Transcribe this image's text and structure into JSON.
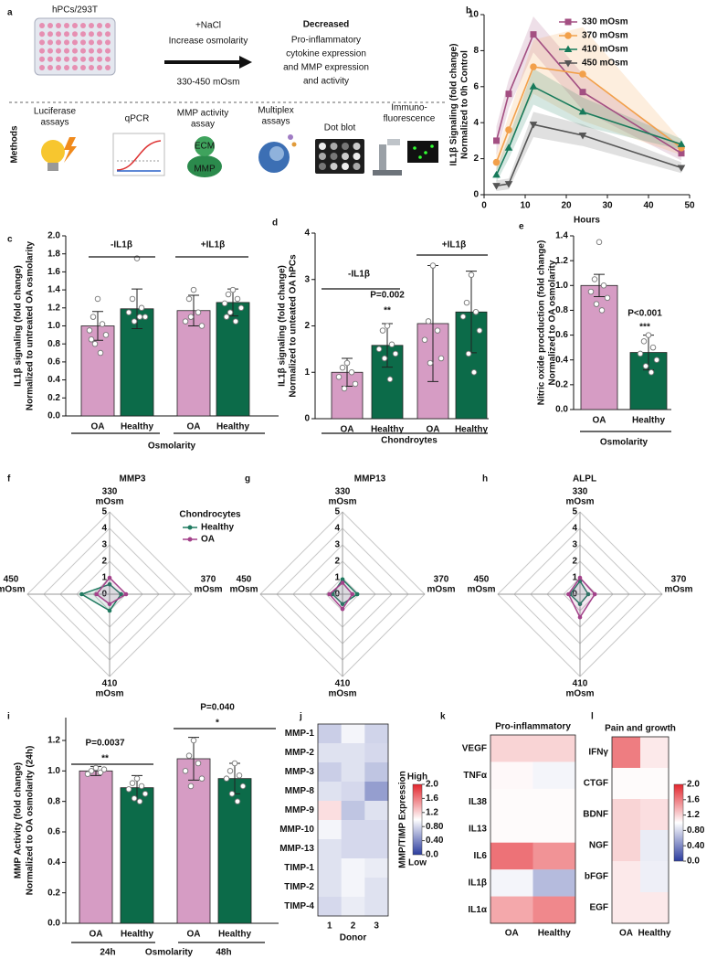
{
  "schematic": {
    "panel": "a",
    "plate_label": "hPCs/293T",
    "treatment": [
      "+NaCl",
      "Increase osmolarity",
      "330-450 mOsm"
    ],
    "outcome_title": "Decreased",
    "outcome": [
      "Pro-inflammatory",
      "cytokine expression",
      "and MMP expression",
      "and activity"
    ],
    "methods_title": "Methods",
    "methods": [
      [
        "Luciferase",
        "assays"
      ],
      [
        "qPCR"
      ],
      [
        "MMP activity",
        "assay"
      ],
      [
        "Multiplex",
        "assays"
      ],
      [
        "Dot blot"
      ],
      [
        "Immuno-",
        "fluorescence"
      ]
    ],
    "icon_text": [
      "ECM",
      "MMP"
    ]
  },
  "chart_data": [
    {
      "panel": "b",
      "type": "line",
      "ylabel": [
        "IL1β Signaling (fold change)",
        "Normalized to 0h Control"
      ],
      "xlabel": "Hours",
      "x": [
        3,
        6,
        12,
        24,
        48
      ],
      "xlim": [
        0,
        50
      ],
      "xticks": [
        0,
        10,
        20,
        30,
        40,
        50
      ],
      "ylim": [
        0,
        10
      ],
      "yticks": [
        0,
        2,
        4,
        6,
        8,
        10
      ],
      "legend": "upper right",
      "series": [
        {
          "name": "330 mOsm",
          "color": "#a34f82",
          "marker": "square",
          "values": [
            3.0,
            5.6,
            8.9,
            5.7,
            2.3
          ],
          "errors": [
            0.8,
            0.8,
            1.0,
            1.0,
            0.4
          ]
        },
        {
          "name": "370 mOsm",
          "color": "#f2a04a",
          "marker": "circle",
          "values": [
            1.8,
            3.6,
            7.1,
            6.7,
            2.6
          ],
          "errors": [
            0.5,
            0.8,
            1.5,
            2.6,
            0.4
          ]
        },
        {
          "name": "410 mOsm",
          "color": "#177a5a",
          "marker": "triangle",
          "values": [
            1.1,
            2.6,
            6.0,
            4.6,
            2.8
          ],
          "errors": [
            0.4,
            0.6,
            1.0,
            0.8,
            0.3
          ]
        },
        {
          "name": "450 mOsm",
          "color": "#555555",
          "marker": "triangle-down",
          "values": [
            0.5,
            0.6,
            3.9,
            3.3,
            1.5
          ],
          "errors": [
            0.3,
            0.3,
            0.7,
            0.6,
            0.3
          ]
        }
      ]
    },
    {
      "panel": "c",
      "type": "bar",
      "ylabel": [
        "IL1β signaling (fold change)",
        "Normalized to untreated OA osmolarity"
      ],
      "xlabel": "Osmolarity",
      "groups": [
        "-IL1β",
        "+IL1β"
      ],
      "annotations": [],
      "categories": [
        "OA",
        "Healthy",
        "OA",
        "Healthy"
      ],
      "colors": [
        "#d69cc4",
        "#0c6b49",
        "#d69cc4",
        "#0c6b49"
      ],
      "values": [
        1.0,
        1.19,
        1.17,
        1.26
      ],
      "errors": [
        0.16,
        0.22,
        0.17,
        0.15
      ],
      "points": [
        [
          1.3,
          1.1,
          1.02,
          0.95,
          0.9,
          0.8,
          0.7,
          0.85
        ],
        [
          1.75,
          1.3,
          1.2,
          1.15,
          1.1,
          1.05,
          1.1
        ],
        [
          1.4,
          1.3,
          1.15,
          1.05,
          1.0,
          1.1
        ],
        [
          1.4,
          1.35,
          1.3,
          1.25,
          1.2,
          1.15,
          1.05,
          1.1
        ]
      ],
      "ylim": [
        0,
        2
      ],
      "yticks": [
        {
          "value": 0,
          "label": "0.0"
        },
        0.2,
        0.4,
        0.6,
        0.8,
        {
          "value": 1,
          "label": "1.0"
        },
        1.2,
        1.4,
        1.6,
        1.8,
        {
          "value": 2,
          "label": "2.0"
        }
      ]
    },
    {
      "panel": "d",
      "type": "bar",
      "ylabel": [
        "IL1β signaling (fold change)",
        "Normalized to unteated OA hPCs"
      ],
      "xlabel": "Chondroytes",
      "groups": [
        "-IL1β",
        "+IL1β"
      ],
      "annotations": [
        "P=0.002",
        "**"
      ],
      "categories": [
        "OA",
        "Healthy",
        "OA",
        "Healthy"
      ],
      "colors": [
        "#d69cc4",
        "#0c6b49",
        "#d69cc4",
        "#0c6b49"
      ],
      "values": [
        1.0,
        1.58,
        2.05,
        2.3
      ],
      "errors": [
        0.3,
        0.47,
        1.25,
        0.88
      ],
      "points": [
        [
          1.2,
          1.1,
          1.0,
          0.9,
          0.75,
          0.65
        ],
        [
          2.0,
          1.9,
          1.6,
          1.5,
          1.4,
          1.3,
          0.85
        ],
        [
          3.3,
          2.1,
          1.9,
          1.7,
          1.3,
          1.2
        ],
        [
          3.1,
          2.5,
          2.3,
          2.2,
          1.9,
          1.4,
          1.0
        ]
      ],
      "ylim": [
        0,
        4
      ],
      "yticks": [
        0,
        1,
        2,
        3,
        4
      ]
    },
    {
      "panel": "e",
      "type": "bar",
      "ylabel": [
        "Nitric oxide procduction (fold change)",
        "Normalized to OA osmolarity"
      ],
      "xlabel": "Osmolarity",
      "groups": [],
      "annotations": [
        "P<0.001",
        "***"
      ],
      "categories": [
        "OA",
        "Healthy"
      ],
      "colors": [
        "#d69cc4",
        "#0c6b49"
      ],
      "values": [
        1.0,
        0.46
      ],
      "errors": [
        0.09,
        0.14
      ],
      "points": [
        [
          1.35,
          1.05,
          1.0,
          0.95,
          0.9,
          0.85,
          0.8
        ],
        [
          0.6,
          0.55,
          0.5,
          0.45,
          0.4,
          0.35,
          0.3
        ]
      ],
      "ylim": [
        0,
        1.4
      ],
      "yticks": [
        {
          "value": 0,
          "label": "0.0"
        },
        0.2,
        0.4,
        0.6,
        0.8,
        {
          "value": 1,
          "label": "1.0"
        },
        1.2,
        1.4
      ]
    },
    {
      "panel": "f",
      "type": "radar",
      "title": "MMP3",
      "axes": [
        [
          "330",
          "mOsm"
        ],
        [
          "370",
          "mOsm"
        ],
        [
          "410",
          "mOsm"
        ],
        [
          "450",
          "mOsm"
        ]
      ],
      "rlim": [
        0,
        5
      ],
      "rticks": [
        0,
        1,
        2,
        3,
        4,
        5
      ],
      "legend_title": "Chondrocytes",
      "series": [
        {
          "name": "Healthy",
          "color": "#1f7a60",
          "values": [
            0.6,
            0.7,
            1.0,
            1.7
          ]
        },
        {
          "name": "OA",
          "color": "#a3418a",
          "values": [
            1.0,
            1.0,
            0.6,
            0.8
          ]
        }
      ]
    },
    {
      "panel": "g",
      "type": "radar",
      "title": "MMP13",
      "axes": [
        [
          "330",
          "mOsm"
        ],
        [
          "370",
          "mOsm"
        ],
        [
          "410",
          "mOsm"
        ],
        [
          "450",
          "mOsm"
        ]
      ],
      "rlim": [
        0,
        5
      ],
      "rticks": [
        0,
        1,
        2,
        3,
        4,
        5
      ],
      "series": [
        {
          "color": "#1f7a60",
          "values": [
            0.9,
            0.9,
            0.6,
            0.6
          ]
        },
        {
          "color": "#a3418a",
          "values": [
            0.7,
            0.6,
            0.9,
            0.8
          ]
        }
      ]
    },
    {
      "panel": "h",
      "type": "radar",
      "title": "ALPL",
      "axes": [
        [
          "330",
          "mOsm"
        ],
        [
          "370",
          "mOsm"
        ],
        [
          "410",
          "mOsm"
        ],
        [
          "450",
          "mOsm"
        ]
      ],
      "rlim": [
        0,
        5
      ],
      "rticks": [
        0,
        1,
        2,
        3,
        4,
        5
      ],
      "series": [
        {
          "color": "#1f7a60",
          "values": [
            0.8,
            0.5,
            0.6,
            0.6
          ]
        },
        {
          "color": "#a3418a",
          "values": [
            1.0,
            0.9,
            1.4,
            0.7
          ]
        }
      ]
    },
    {
      "panel": "i",
      "type": "bar",
      "ylabel": [
        "MMP Activity (fold change)",
        "Normalized to OA osmolarity (24h)"
      ],
      "xlabel": "Osmolarity",
      "groups": [
        "24h",
        "48h"
      ],
      "annotations": [
        "P=0.0037",
        "**",
        "P=0.040",
        "*"
      ],
      "categories": [
        "OA",
        "Healthy",
        "OA",
        "Healthy"
      ],
      "colors": [
        "#d69cc4",
        "#0c6b49",
        "#d69cc4",
        "#0c6b49"
      ],
      "values": [
        1.0,
        0.89,
        1.08,
        0.95
      ],
      "errors": [
        0.03,
        0.08,
        0.14,
        0.1
      ],
      "points": [
        [
          1.02,
          1.0,
          0.99,
          0.98,
          1.01
        ],
        [
          0.95,
          0.92,
          0.9,
          0.88,
          0.85,
          0.82,
          0.8
        ],
        [
          1.2,
          1.1,
          1.05,
          1.0,
          0.95,
          0.9
        ],
        [
          1.05,
          1.0,
          0.97,
          0.95,
          0.9,
          0.85,
          0.8
        ]
      ],
      "ylim": [
        0,
        1.35
      ],
      "yticks": [
        {
          "value": 0,
          "label": "0.0"
        },
        0.2,
        0.4,
        0.6,
        0.8,
        {
          "value": 1,
          "label": "1.0"
        },
        1.2
      ]
    },
    {
      "panel": "j",
      "type": "heatmap",
      "rows": [
        "MMP-1",
        "MMP-2",
        "MMP-3",
        "MMP-8",
        "MMP-9",
        "MMP-10",
        "MMP-13",
        "TIMP-1",
        "TIMP-2",
        "TIMP-4"
      ],
      "columns": [
        "1",
        "2",
        "3"
      ],
      "xlabel": "Donor",
      "values": [
        [
          0.75,
          0.95,
          0.78
        ],
        [
          0.85,
          0.85,
          0.8
        ],
        [
          0.75,
          0.85,
          0.7
        ],
        [
          0.85,
          0.8,
          0.5
        ],
        [
          1.15,
          0.7,
          0.85
        ],
        [
          0.95,
          0.8,
          0.8
        ],
        [
          0.85,
          0.8,
          0.8
        ],
        [
          0.85,
          0.95,
          0.9
        ],
        [
          0.85,
          0.95,
          0.85
        ],
        [
          0.8,
          0.9,
          0.85
        ]
      ],
      "vlim": [
        0,
        2
      ],
      "cmap": [
        "#2b3c9e",
        "#ffffff",
        "#e3262d"
      ],
      "colorbar": {
        "label": "MMP/TIMP Expression",
        "high": "High",
        "low": "Low",
        "ticks": [
          {
            "value": 0,
            "label": "0.0"
          },
          {
            "value": 0.4,
            "label": "0.40"
          },
          {
            "value": 0.8,
            "label": "0.80"
          },
          1.2,
          1.6,
          {
            "value": 2,
            "label": "2.0"
          }
        ]
      }
    },
    {
      "panel": "k",
      "type": "heatmap",
      "title": "Pro-inflammatory",
      "rows": [
        "VEGF",
        "TNFα",
        "IL38",
        "IL13",
        "IL6",
        "IL1β",
        "IL1α"
      ],
      "columns": [
        "OA",
        "Healthy"
      ],
      "values": [
        [
          1.2,
          1.2
        ],
        [
          1.03,
          0.95
        ],
        [
          1.02,
          1.02
        ],
        [
          1.02,
          1.02
        ],
        [
          1.65,
          1.5
        ],
        [
          0.95,
          0.65
        ],
        [
          1.4,
          1.55
        ]
      ],
      "vlim": [
        0,
        2
      ],
      "cmap": [
        "#2b3c9e",
        "#ffffff",
        "#e3262d"
      ]
    },
    {
      "panel": "l",
      "type": "heatmap",
      "title": "Pain and growth",
      "rows": [
        "IFNγ",
        "CTGF",
        "BDNF",
        "NGF",
        "bFGF",
        "EGF"
      ],
      "columns": [
        "OA",
        "Healthy"
      ],
      "values": [
        [
          1.6,
          1.1
        ],
        [
          1.02,
          1.02
        ],
        [
          1.2,
          1.15
        ],
        [
          1.2,
          0.9
        ],
        [
          1.1,
          0.92
        ],
        [
          1.1,
          1.1
        ]
      ],
      "vlim": [
        0,
        2
      ],
      "cmap": [
        "#2b3c9e",
        "#ffffff",
        "#e3262d"
      ],
      "colorbar": {
        "ticks": [
          {
            "value": 0,
            "label": "0.0"
          },
          {
            "value": 0.4,
            "label": "0.40"
          },
          {
            "value": 0.8,
            "label": "0.80"
          },
          1.2,
          1.6,
          {
            "value": 2,
            "label": "2.0"
          }
        ]
      }
    }
  ]
}
